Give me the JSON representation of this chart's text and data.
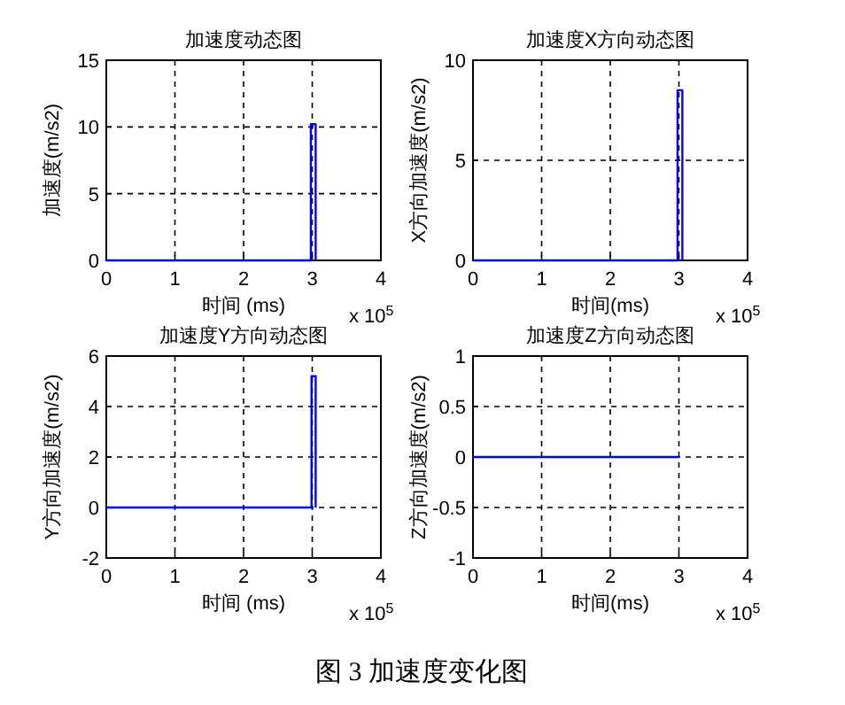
{
  "chart_data": [
    {
      "type": "line",
      "title": "加速度动态图",
      "xlabel": "时间 (ms)",
      "ylabel": "加速度(m/s2)",
      "annotations": [
        "x 10$^{5}$"
      ],
      "series": [
        {
          "color": "#0000ff",
          "x": [
            0,
            2.98,
            2.98,
            3.05,
            3.05
          ],
          "values": [
            0,
            0,
            10.2,
            10.2,
            0
          ]
        }
      ],
      "xlim": [
        0,
        4
      ],
      "xticks": [
        0,
        1,
        2,
        3,
        4
      ],
      "ylim": [
        0,
        15
      ],
      "yticks": [
        0,
        5,
        10,
        15
      ],
      "grid": true,
      "line_style": "solid",
      "marker": "none"
    },
    {
      "type": "line",
      "title": "加速度X方向动态图",
      "xlabel": "时间(ms)",
      "ylabel": "X方向加速度(m/s2)",
      "annotations": [
        "x 10$^{5}$"
      ],
      "series": [
        {
          "color": "#0000ff",
          "x": [
            0,
            2.98,
            2.98,
            3.05,
            3.05
          ],
          "values": [
            0,
            0,
            8.5,
            8.5,
            0
          ]
        }
      ],
      "xlim": [
        0,
        4
      ],
      "xticks": [
        0,
        1,
        2,
        3,
        4
      ],
      "ylim": [
        0,
        10
      ],
      "yticks": [
        0,
        5,
        10
      ],
      "grid": true,
      "line_style": "solid",
      "marker": "none"
    },
    {
      "type": "line",
      "title": "加速度Y方向动态图",
      "xlabel": "时间 (ms)",
      "ylabel": "Y方向加速度(m/s2)",
      "annotations": [
        "x 10$^{5}$"
      ],
      "series": [
        {
          "color": "#0000ff",
          "x": [
            0,
            2.99,
            2.99,
            3.05,
            3.05
          ],
          "values": [
            0,
            0,
            5.2,
            5.2,
            0
          ]
        }
      ],
      "xlim": [
        0,
        4
      ],
      "xticks": [
        0,
        1,
        2,
        3,
        4
      ],
      "ylim": [
        -2,
        6
      ],
      "yticks": [
        -2,
        0,
        2,
        4,
        6
      ],
      "grid": true,
      "line_style": "solid",
      "marker": "none"
    },
    {
      "type": "line",
      "title": "加速度Z方向动态图",
      "xlabel": "时间(ms)",
      "ylabel": "Z方向加速度(m/s2)",
      "annotations": [
        "x 10$^{5}$",
        "图 3  加速度变化图"
      ],
      "series": [
        {
          "color": "#0000ff",
          "x": [
            0,
            3
          ],
          "values": [
            0,
            0
          ]
        }
      ],
      "xlim": [
        0,
        4
      ],
      "xticks": [
        0,
        1,
        2,
        3,
        4
      ],
      "ylim": [
        -1,
        1
      ],
      "yticks": [
        -1,
        -0.5,
        0,
        0.5,
        1
      ],
      "grid": true,
      "line_style": "solid",
      "marker": "none"
    }
  ]
}
